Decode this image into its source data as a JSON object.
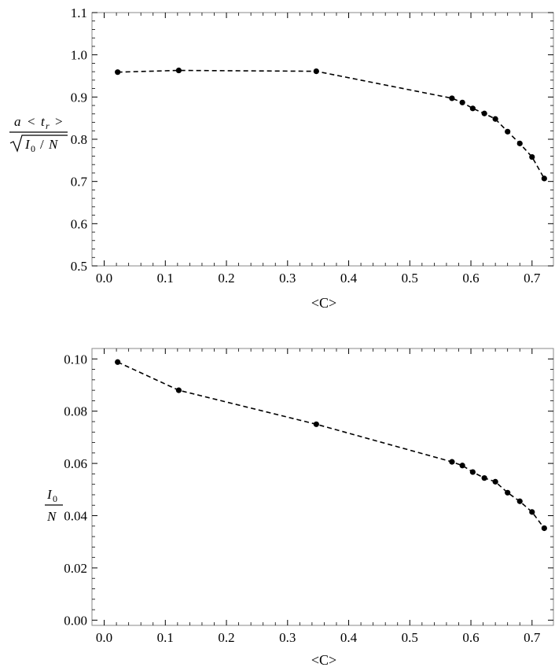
{
  "chart_data": [
    {
      "type": "line",
      "style": "dashed line with filled circular markers",
      "xlabel": "<C>",
      "ylabel": "a < t_r > / sqrt(I_0 / N)",
      "ylabel_parts": {
        "num_a": "a",
        "num_lt": "<",
        "num_t": "t",
        "num_sub": "r",
        "num_gt": ">",
        "den_I": "I",
        "den_sub": "0",
        "den_slash": "/",
        "den_N": "N"
      },
      "xlim": [
        -0.02,
        0.735
      ],
      "ylim": [
        0.5,
        1.1
      ],
      "xticks": [
        "0.0",
        "0.1",
        "0.2",
        "0.3",
        "0.4",
        "0.5",
        "0.6",
        "0.7"
      ],
      "xtick_values": [
        0.0,
        0.1,
        0.2,
        0.3,
        0.4,
        0.5,
        0.6,
        0.7
      ],
      "yticks": [
        "0.5",
        "0.6",
        "0.7",
        "0.8",
        "0.9",
        "1.0",
        "1.1"
      ],
      "ytick_values": [
        0.5,
        0.6,
        0.7,
        0.8,
        0.9,
        1.0,
        1.1
      ],
      "x": [
        0.022,
        0.122,
        0.347,
        0.569,
        0.586,
        0.603,
        0.622,
        0.64,
        0.66,
        0.68,
        0.7,
        0.72
      ],
      "y": [
        0.959,
        0.963,
        0.961,
        0.897,
        0.887,
        0.873,
        0.861,
        0.848,
        0.818,
        0.79,
        0.758,
        0.707
      ],
      "grid": false,
      "color": "#000000"
    },
    {
      "type": "line",
      "style": "dashed line with filled circular markers",
      "xlabel": "<C>",
      "ylabel": "I_0 / N",
      "ylabel_parts": {
        "num_I": "I",
        "num_sub": "0",
        "den_N": "N"
      },
      "xlim": [
        -0.02,
        0.735
      ],
      "ylim": [
        -0.002,
        0.104
      ],
      "xticks": [
        "0.0",
        "0.1",
        "0.2",
        "0.3",
        "0.4",
        "0.5",
        "0.6",
        "0.7"
      ],
      "xtick_values": [
        0.0,
        0.1,
        0.2,
        0.3,
        0.4,
        0.5,
        0.6,
        0.7
      ],
      "yticks": [
        "0.00",
        "0.02",
        "0.04",
        "0.06",
        "0.08",
        "0.10"
      ],
      "ytick_values": [
        0.0,
        0.02,
        0.04,
        0.06,
        0.08,
        0.1
      ],
      "x": [
        0.022,
        0.122,
        0.347,
        0.569,
        0.586,
        0.603,
        0.622,
        0.64,
        0.66,
        0.68,
        0.7,
        0.72
      ],
      "y": [
        0.0988,
        0.088,
        0.075,
        0.0606,
        0.0592,
        0.0567,
        0.0544,
        0.053,
        0.0488,
        0.0455,
        0.0414,
        0.0352
      ],
      "grid": false,
      "color": "#000000"
    }
  ]
}
